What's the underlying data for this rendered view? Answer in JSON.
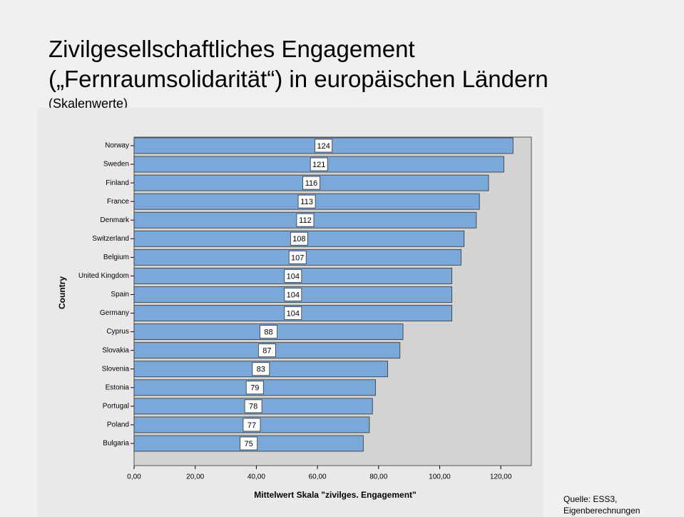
{
  "title": [
    "Zivilgesellschaftliches Engagement",
    "(„Fernraumsolidarität“) in europäischen Ländern"
  ],
  "subtitle": "(Skalenwerte)",
  "source": [
    "Quelle: ESS3,",
    "Eigenberechnungen"
  ],
  "chart_data": {
    "type": "barh",
    "categories": [
      "Norway",
      "Sweden",
      "Finland",
      "France",
      "Denmark",
      "Switzerland",
      "Belgium",
      "United Kingdom",
      "Spain",
      "Germany",
      "Cyprus",
      "Slovakia",
      "Slovenia",
      "Estonia",
      "Portugal",
      "Poland",
      "Bulgaria"
    ],
    "values": [
      124,
      121,
      116,
      113,
      112,
      108,
      107,
      104,
      104,
      104,
      88,
      87,
      83,
      79,
      78,
      77,
      75
    ],
    "color": "#7aa8d9",
    "xlabel": "Mittelwert Skala \"zivilges. Engagement\"",
    "ylabel": "Country",
    "xlim": [
      0,
      130
    ],
    "xticks": [
      {
        "value": 0,
        "label": "0,00"
      },
      {
        "value": 20,
        "label": "20,00"
      },
      {
        "value": 40,
        "label": "40,00"
      },
      {
        "value": 60,
        "label": "60,00"
      },
      {
        "value": 80,
        "label": "80,00"
      },
      {
        "value": 100,
        "label": "100,00"
      },
      {
        "value": 120,
        "label": "120,00"
      }
    ]
  }
}
